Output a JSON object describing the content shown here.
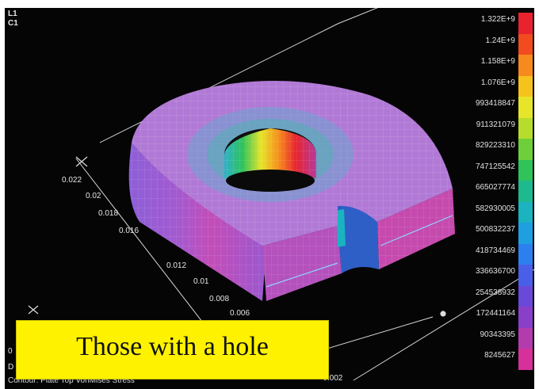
{
  "viewport": {
    "layer_labels": [
      "L1",
      "C1"
    ],
    "contour_caption": "Contour: Plate Top VonMises Stress",
    "axis_ticks_left": [
      "0.022",
      "0.02",
      "0.018",
      "0.016",
      "0.012",
      "0.01",
      "0.008",
      "0.006"
    ],
    "axis_tick_bottom": "-0.002",
    "side_letters": [
      "0",
      "D"
    ]
  },
  "legend": {
    "entries": [
      {
        "label": "1.322E+9",
        "color": "#e8232f"
      },
      {
        "label": "1.24E+9",
        "color": "#f24b1f"
      },
      {
        "label": "1.158E+9",
        "color": "#f68a1e"
      },
      {
        "label": "1.076E+9",
        "color": "#f6c21c"
      },
      {
        "label": "993418847",
        "color": "#e6e52a"
      },
      {
        "label": "911321079",
        "color": "#b7dc2c"
      },
      {
        "label": "829223310",
        "color": "#6fcf3a"
      },
      {
        "label": "747125542",
        "color": "#2fc35a"
      },
      {
        "label": "665027774",
        "color": "#1fb98e"
      },
      {
        "label": "582930005",
        "color": "#1ab3bf"
      },
      {
        "label": "500832237",
        "color": "#1e9fe0"
      },
      {
        "label": "418734469",
        "color": "#2d7ff0"
      },
      {
        "label": "336636700",
        "color": "#4a5fe8"
      },
      {
        "label": "254538932",
        "color": "#6b49d8"
      },
      {
        "label": "172441164",
        "color": "#8a3fc8"
      },
      {
        "label": "90343395",
        "color": "#b23cae"
      },
      {
        "label": "8245627",
        "color": "#d6309a"
      }
    ]
  },
  "banner": {
    "text": "Those with a hole",
    "color": "#fff200"
  },
  "colors": {
    "background": "#050505",
    "outer_face": "#8a5ed6",
    "top_face": "#b178d8",
    "hole_hot": "#e8232f",
    "hole_cool": "#1fb98e"
  }
}
